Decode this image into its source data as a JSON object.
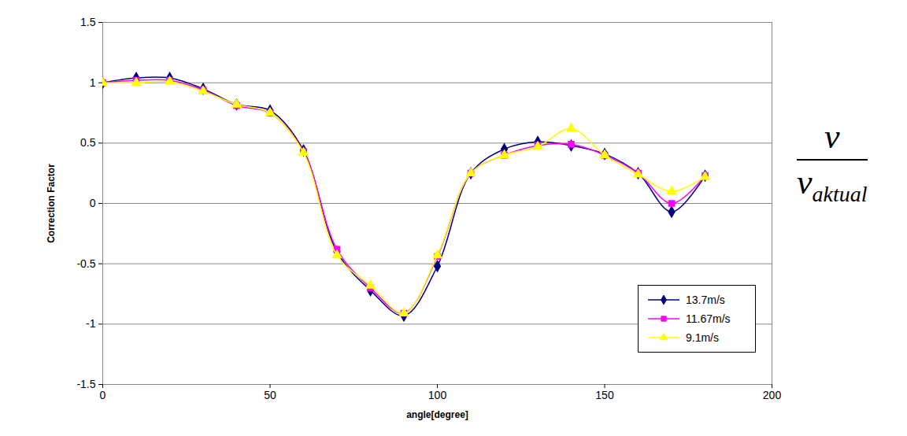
{
  "chart_data": {
    "type": "line",
    "x_label": "angle[degree]",
    "y_label": "Correction Factor",
    "side_label": {
      "numerator": "v",
      "denominator": "v",
      "subscript": "aktual"
    },
    "x": [
      0,
      10,
      20,
      30,
      40,
      50,
      60,
      70,
      80,
      90,
      100,
      110,
      120,
      130,
      140,
      150,
      160,
      170,
      180
    ],
    "series": [
      {
        "name": "13.7m/s",
        "color": "#000080",
        "marker": "diamond",
        "line_style": "solid",
        "values": [
          1,
          1.04,
          1.04,
          0.95,
          0.82,
          0.77,
          0.44,
          -0.4,
          -0.72,
          -0.93,
          -0.52,
          0.25,
          0.45,
          0.51,
          0.48,
          0.41,
          0.25,
          -0.07,
          0.23
        ]
      },
      {
        "name": "11.67m/s",
        "color": "#ff00ff",
        "marker": "square",
        "line_style": "solid",
        "values": [
          1,
          1.02,
          1.02,
          0.94,
          0.81,
          0.75,
          0.43,
          -0.38,
          -0.7,
          -0.91,
          -0.44,
          0.25,
          0.4,
          0.48,
          0.49,
          0.4,
          0.25,
          0,
          0.23
        ]
      },
      {
        "name": "9.1m/s",
        "color": "#ffff00",
        "marker": "triangle",
        "line_style": "solid",
        "values": [
          1,
          1,
          1.01,
          0.93,
          0.82,
          0.75,
          0.42,
          -0.43,
          -0.68,
          -0.91,
          -0.43,
          0.25,
          0.4,
          0.47,
          0.62,
          0.4,
          0.24,
          0.1,
          0.22
        ]
      }
    ],
    "xlim": [
      0,
      200
    ],
    "xticks": [
      0,
      50,
      100,
      150,
      200
    ],
    "ylim": [
      -1.5,
      1.5
    ],
    "yticks": [
      -1.5,
      -1,
      -0.5,
      0,
      0.5,
      1,
      1.5
    ],
    "grid": true,
    "legend": "bottom-right"
  }
}
